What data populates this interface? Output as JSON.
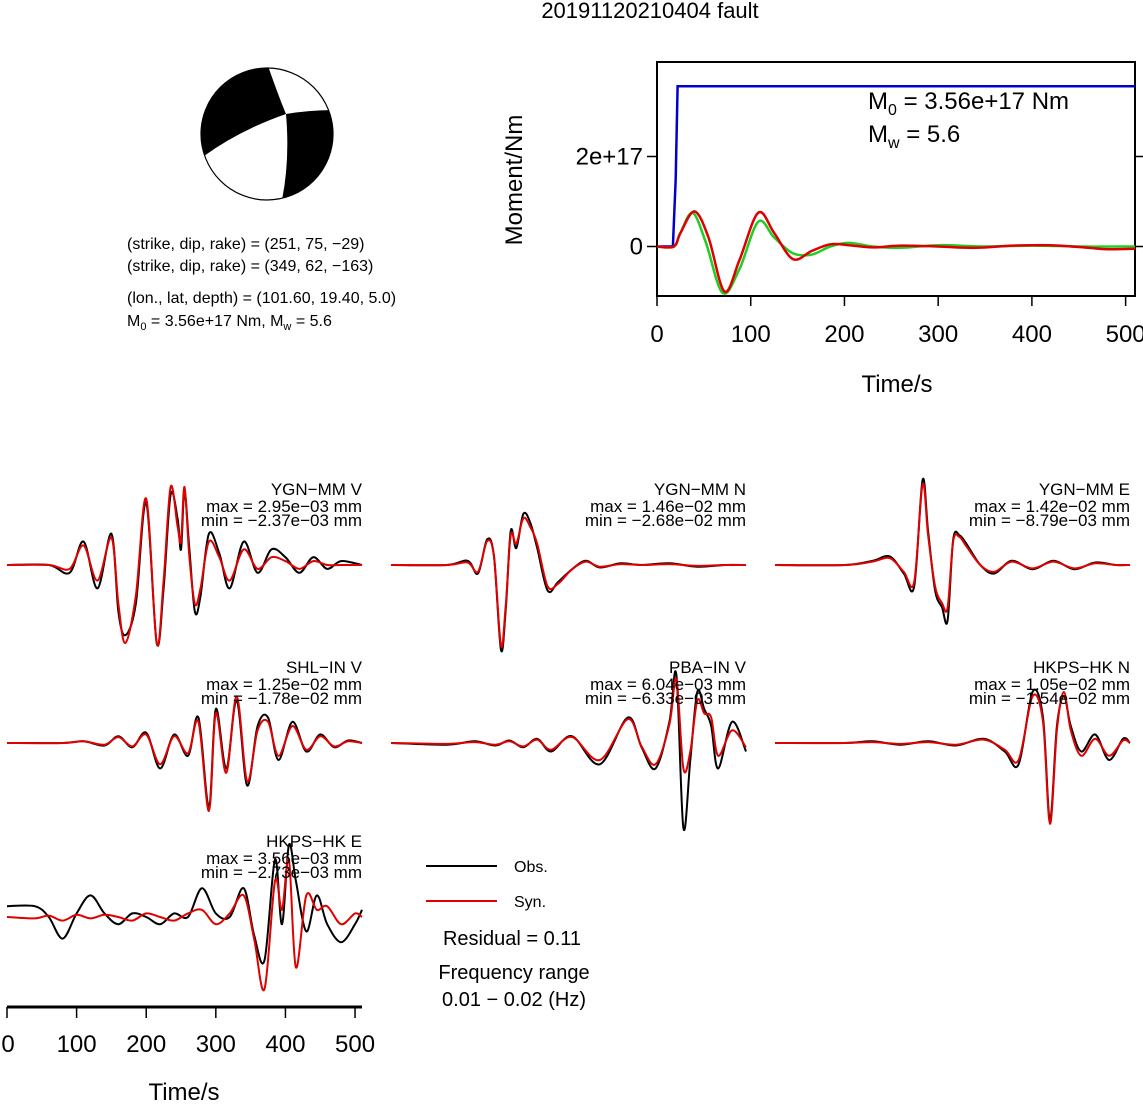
{
  "title": "20191120210404 fault",
  "mechanism": {
    "strike_dip_rake_1": "(strike, dip, rake) = (251, 75, −29)",
    "strike_dip_rake_2": "(strike, dip, rake) = (349, 62, −163)",
    "location": "(lon., lat, depth) = (101.60, 19.40, 5.0)",
    "moment_prefix": "M",
    "moment_sub": "0",
    "moment_mid": " = 3.56e+17 Nm, M",
    "moment_sub2": "w",
    "moment_end": " = 5.6"
  },
  "colors": {
    "obs": "#000000",
    "syn": "#e00000",
    "moment_blue": "#0000cc",
    "moment_green": "#22cc22",
    "moment_red": "#dd0000"
  },
  "chart_data": [
    {
      "type": "line",
      "name": "moment-function",
      "xlabel": "Time/s",
      "ylabel": "Moment/Nm",
      "xlim": [
        0,
        510
      ],
      "ylim": [
        -1.1e+17,
        4.1e+17
      ],
      "xticks": [
        "0",
        "100",
        "200",
        "300",
        "400",
        "500"
      ],
      "xtick_values": [
        0,
        100,
        200,
        300,
        400,
        500
      ],
      "yticks": [
        "0",
        "2e+17"
      ],
      "ytick_values": [
        0,
        2e+17
      ],
      "annotation_m0_prefix": "M",
      "annotation_m0_sub": "0",
      "annotation_m0_value": " = 3.56e+17 Nm",
      "annotation_mw_prefix": "M",
      "annotation_mw_sub": "w",
      "annotation_mw_value": " = 5.6",
      "series": [
        {
          "color": "#0000cc",
          "x": [
            0,
            17,
            20,
            22,
            510
          ],
          "y": [
            0,
            0,
            1.5e+17,
            3.56e+17,
            3.56e+17
          ]
        },
        {
          "color": "#22cc22",
          "x": [
            0,
            18,
            25,
            38,
            52,
            70,
            88,
            108,
            125,
            145,
            165,
            185,
            205,
            230,
            260,
            300,
            350,
            400,
            450,
            510
          ],
          "y": [
            0,
            0,
            3e+16,
            7.5e+16,
            1e+16,
            -1.03e+17,
            -5e+16,
            5.5e+16,
            2e+16,
            -1.5e+16,
            -1.8e+16,
            0,
            8000000000000000.0,
            0,
            -3000000000000000.0,
            3000000000000000.0,
            0,
            2000000000000000.0,
            0,
            0
          ]
        },
        {
          "color": "#dd0000",
          "x": [
            0,
            18,
            25,
            40,
            55,
            72,
            88,
            108,
            125,
            145,
            165,
            185,
            205,
            230,
            260,
            300,
            340,
            380,
            420,
            460,
            480,
            510
          ],
          "y": [
            0,
            0,
            3e+16,
            7.8e+16,
            2e+16,
            -1e+17,
            -3e+16,
            7.5e+16,
            3e+16,
            -2.8e+16,
            -1e+16,
            5000000000000000.0,
            3000000000000000.0,
            -2000000000000000.0,
            2000000000000000.0,
            0,
            -3000000000000000.0,
            2000000000000000.0,
            3000000000000000.0,
            -3000000000000000.0,
            -6000000000000000.0,
            -5000000000000000.0
          ]
        }
      ]
    },
    {
      "type": "line",
      "name": "waveform-panels",
      "xlabel": "Time/s",
      "xlim": [
        0,
        510
      ],
      "xticks": [
        "0",
        "100",
        "200",
        "300",
        "400",
        "500"
      ],
      "xtick_values": [
        0,
        100,
        200,
        300,
        400,
        500
      ],
      "legend": [
        "Obs.",
        "Syn."
      ],
      "residual": "Residual = 0.11",
      "freq_label": "Frequency range",
      "freq_range": "0.01 − 0.02 (Hz)",
      "panels": [
        {
          "station": "YGN−MM V",
          "max": "max = 2.95e−03 mm",
          "min": "min = −2.37e−03 mm",
          "obs": {
            "t": [
              0,
              60,
              90,
              110,
              130,
              150,
              160,
              170,
              185,
              200,
              215,
              225,
              235,
              245,
              250,
              255,
              262,
              270,
              278,
              290,
              305,
              320,
              340,
              360,
              380,
              400,
              420,
              440,
              460,
              480,
              510
            ],
            "v": [
              0,
              0,
              -0.1,
              0.3,
              -0.3,
              0.4,
              -0.6,
              -0.9,
              -0.5,
              0.8,
              -1.0,
              -0.3,
              0.9,
              0.6,
              0.2,
              0.95,
              0.2,
              -0.6,
              -0.4,
              0.4,
              0.15,
              -0.3,
              0.3,
              -0.1,
              0.2,
              0.1,
              -0.1,
              0.1,
              -0.05,
              0.05,
              0
            ]
          },
          "syn": {
            "t": [
              0,
              60,
              90,
              110,
              130,
              150,
              160,
              170,
              185,
              200,
              215,
              225,
              235,
              245,
              250,
              255,
              262,
              270,
              278,
              290,
              305,
              320,
              340,
              360,
              380,
              400,
              420,
              440,
              460,
              480,
              510
            ],
            "v": [
              0,
              0,
              -0.05,
              0.25,
              -0.2,
              0.35,
              -0.5,
              -1.0,
              -0.4,
              0.85,
              -1.0,
              -0.2,
              1.0,
              0.5,
              0.3,
              1.0,
              0.1,
              -0.5,
              -0.3,
              0.3,
              0.1,
              -0.2,
              0.2,
              -0.05,
              0.1,
              0.05,
              -0.05,
              0.05,
              0,
              0,
              0
            ]
          }
        },
        {
          "station": "YGN−MM N",
          "max": "max = 1.46e−02 mm",
          "min": "min = −2.68e−02 mm",
          "obs": {
            "t": [
              0,
              80,
              110,
              125,
              138,
              148,
              158,
              165,
              172,
              180,
              190,
              200,
              210,
              225,
              240,
              260,
              280,
              300,
              330,
              360,
              400,
              440,
              480,
              510
            ],
            "v": [
              0,
              0,
              0.05,
              -0.1,
              0.3,
              0.1,
              -1.0,
              -0.5,
              0.4,
              0.2,
              0.6,
              0.5,
              0.2,
              -0.3,
              -0.2,
              -0.05,
              0.05,
              -0.03,
              0.02,
              0.0,
              0.02,
              -0.02,
              0.0,
              0
            ]
          },
          "syn": {
            "t": [
              0,
              80,
              110,
              125,
              138,
              148,
              158,
              165,
              172,
              180,
              190,
              200,
              210,
              225,
              240,
              260,
              280,
              300,
              330,
              360,
              400,
              440,
              480,
              510
            ],
            "v": [
              0,
              0,
              0.03,
              -0.08,
              0.28,
              0.1,
              -0.95,
              -0.45,
              0.35,
              0.25,
              0.55,
              0.45,
              0.25,
              -0.25,
              -0.22,
              -0.05,
              0.04,
              -0.02,
              0.01,
              0.0,
              0.01,
              -0.01,
              0.0,
              0
            ]
          }
        },
        {
          "station": "YGN−MM E",
          "max": "max = 1.42e−02 mm",
          "min": "min = −8.79e−03 mm",
          "obs": {
            "t": [
              0,
              100,
              140,
              165,
              185,
              200,
              212,
              220,
              230,
              240,
              248,
              256,
              265,
              275,
              295,
              315,
              340,
              370,
              400,
              430,
              460,
              490,
              510
            ],
            "v": [
              0,
              0,
              0.05,
              0.1,
              -0.1,
              -0.25,
              1.0,
              0.4,
              -0.3,
              -0.5,
              -0.65,
              0.3,
              0.35,
              0.25,
              0.0,
              -0.1,
              0.05,
              -0.05,
              0.05,
              -0.05,
              0.03,
              0.0,
              0
            ]
          },
          "syn": {
            "t": [
              0,
              100,
              140,
              165,
              185,
              200,
              212,
              220,
              230,
              240,
              248,
              256,
              265,
              275,
              295,
              315,
              340,
              370,
              400,
              430,
              460,
              490,
              510
            ],
            "v": [
              0,
              0,
              0.04,
              0.08,
              -0.08,
              -0.2,
              0.95,
              0.35,
              -0.25,
              -0.45,
              -0.5,
              0.28,
              0.33,
              0.22,
              0.0,
              -0.08,
              0.04,
              -0.04,
              0.04,
              -0.04,
              0.02,
              0.0,
              0
            ]
          }
        },
        {
          "station": "SHL−IN V",
          "max": "max = 1.25e−02 mm",
          "min": "min = −1.78e−02 mm",
          "obs": {
            "t": [
              0,
              80,
              110,
              140,
              160,
              180,
              200,
              220,
              240,
              260,
              275,
              290,
              300,
              315,
              330,
              345,
              360,
              375,
              390,
              410,
              430,
              450,
              470,
              490,
              510
            ],
            "v": [
              0,
              0,
              0.02,
              -0.03,
              0.08,
              -0.05,
              0.12,
              -0.3,
              0.1,
              -0.15,
              0.3,
              -0.75,
              0.4,
              -0.3,
              0.5,
              -0.5,
              0.2,
              0.3,
              -0.2,
              0.25,
              -0.1,
              0.1,
              -0.05,
              0.03,
              0
            ]
          },
          "syn": {
            "t": [
              0,
              80,
              110,
              140,
              160,
              180,
              200,
              220,
              240,
              260,
              275,
              290,
              300,
              315,
              330,
              345,
              360,
              375,
              390,
              410,
              430,
              450,
              470,
              490,
              510
            ],
            "v": [
              0,
              0,
              0.02,
              -0.02,
              0.07,
              -0.04,
              0.1,
              -0.25,
              0.08,
              -0.12,
              0.25,
              -0.8,
              0.35,
              -0.35,
              0.55,
              -0.45,
              0.15,
              0.25,
              -0.15,
              0.2,
              -0.08,
              0.08,
              -0.04,
              0.02,
              0
            ]
          }
        },
        {
          "station": "PBA−IN V",
          "max": "max = 6.04e−03 mm",
          "min": "min = −6.33e−03 mm",
          "obs": {
            "t": [
              0,
              80,
              120,
              150,
              170,
              190,
              210,
              230,
              260,
              300,
              340,
              360,
              380,
              400,
              410,
              420,
              430,
              440,
              450,
              460,
              470,
              490,
              510
            ],
            "v": [
              0,
              -0.02,
              0.02,
              -0.03,
              0.03,
              -0.05,
              0.05,
              -0.1,
              0.08,
              -0.25,
              0.3,
              -0.05,
              -0.3,
              0.25,
              0.8,
              -1.0,
              -0.2,
              0.6,
              0.4,
              0.2,
              -0.3,
              0.25,
              -0.1
            ]
          },
          "syn": {
            "t": [
              0,
              80,
              120,
              150,
              170,
              190,
              210,
              230,
              260,
              300,
              340,
              360,
              380,
              400,
              410,
              420,
              430,
              440,
              450,
              460,
              470,
              490,
              510
            ],
            "v": [
              0,
              -0.01,
              0.01,
              -0.02,
              0.02,
              -0.04,
              0.04,
              -0.08,
              0.07,
              -0.2,
              0.28,
              -0.04,
              -0.25,
              0.22,
              0.75,
              -0.3,
              -0.1,
              0.5,
              0.35,
              0.3,
              -0.15,
              0.15,
              -0.05
            ]
          }
        },
        {
          "station": "HKPS−HK N",
          "max": "max = 1.05e−02 mm",
          "min": "min = −1.54e−02 mm",
          "obs": {
            "t": [
              0,
              100,
              140,
              180,
              220,
              260,
              300,
              330,
              350,
              370,
              385,
              395,
              405,
              415,
              425,
              440,
              460,
              480,
              500,
              510
            ],
            "v": [
              0,
              0,
              0.02,
              -0.02,
              0.02,
              -0.03,
              0.05,
              -0.1,
              -0.25,
              0.6,
              0.3,
              -0.9,
              0.2,
              0.55,
              0.2,
              -0.1,
              0.1,
              -0.2,
              0.05,
              0
            ]
          },
          "syn": {
            "t": [
              0,
              100,
              140,
              180,
              220,
              260,
              300,
              330,
              350,
              370,
              385,
              395,
              405,
              415,
              425,
              440,
              460,
              480,
              500,
              510
            ],
            "v": [
              0,
              0,
              0.01,
              -0.01,
              0.01,
              -0.02,
              0.04,
              -0.08,
              -0.2,
              0.55,
              0.25,
              -0.95,
              0.15,
              0.6,
              0.15,
              -0.15,
              0.05,
              -0.15,
              0.03,
              0
            ]
          }
        },
        {
          "station": "HKPS−HK E",
          "max": "max = 3.56e−03 mm",
          "min": "min = −2.73e−03 mm",
          "obs": {
            "t": [
              0,
              40,
              60,
              80,
              100,
              120,
              140,
              160,
              180,
              200,
              220,
              240,
              260,
              280,
              300,
              320,
              340,
              355,
              370,
              385,
              395,
              405,
              415,
              430,
              445,
              460,
              480,
              500,
              510
            ],
            "v": [
              0.15,
              0.15,
              0.0,
              -0.3,
              0.05,
              0.3,
              0.05,
              -0.1,
              0.05,
              0.0,
              -0.1,
              0.05,
              0.0,
              0.4,
              0.05,
              0.0,
              0.4,
              -0.25,
              -0.6,
              0.8,
              -0.1,
              1.0,
              0.5,
              -0.2,
              0.3,
              -0.1,
              -0.35,
              -0.1,
              0.1
            ]
          },
          "syn": {
            "t": [
              0,
              40,
              60,
              80,
              100,
              120,
              140,
              160,
              180,
              200,
              220,
              240,
              260,
              280,
              300,
              320,
              340,
              355,
              370,
              385,
              395,
              405,
              415,
              430,
              445,
              460,
              480,
              500,
              510
            ],
            "v": [
              0,
              -0.02,
              0.02,
              -0.05,
              0.03,
              -0.02,
              0.03,
              0.0,
              -0.05,
              0.05,
              0.0,
              -0.05,
              0.05,
              0.1,
              -0.1,
              0.05,
              0.3,
              -0.3,
              -1.0,
              0.5,
              0.1,
              0.8,
              -0.7,
              0.3,
              0.1,
              0.15,
              -0.1,
              0.05,
              0
            ]
          }
        }
      ]
    }
  ]
}
